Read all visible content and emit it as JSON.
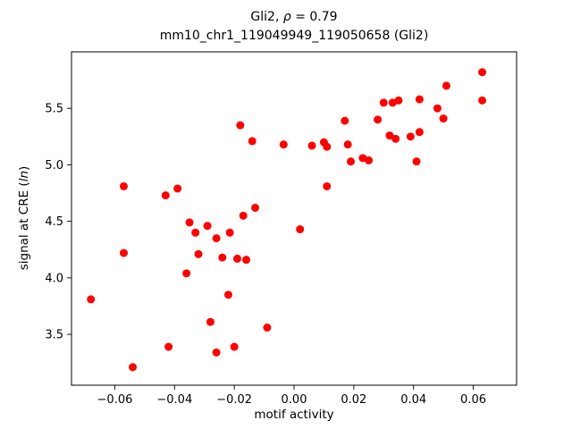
{
  "title": {
    "line1_pre": "Gli2, ",
    "line1_rho": "ρ",
    "line1_post": " = 0.79",
    "line2": "mm10_chr1_119049949_119050658 (Gli2)"
  },
  "axes_labels": {
    "xlabel": "motif activity",
    "ylabel_pre": "signal at CRE (",
    "ylabel_italic": "ln",
    "ylabel_post": ")"
  },
  "chart_data": {
    "type": "scatter",
    "title": "Gli2, ρ = 0.79",
    "subtitle": "mm10_chr1_119049949_119050658 (Gli2)",
    "xlabel": "motif activity",
    "ylabel": "signal at CRE (ln)",
    "legend": "none",
    "grid": false,
    "marker_color": "#ff0000",
    "marker_radius": 4.5,
    "xlim": [
      -0.0745,
      0.0745
    ],
    "ylim": [
      3.05,
      6.0
    ],
    "x_ticks": {
      "values": [
        -0.06,
        -0.04,
        -0.02,
        0.0,
        0.02,
        0.04,
        0.06
      ],
      "labels": [
        "−0.06",
        "−0.04",
        "−0.02",
        "0.00",
        "0.02",
        "0.04",
        "0.06"
      ]
    },
    "y_ticks": {
      "values": [
        3.5,
        4.0,
        4.5,
        5.0,
        5.5
      ],
      "labels": [
        "3.5",
        "4.0",
        "4.5",
        "5.0",
        "5.5"
      ]
    },
    "points": [
      [
        -0.068,
        3.81
      ],
      [
        -0.057,
        4.81
      ],
      [
        -0.057,
        4.22
      ],
      [
        -0.054,
        3.21
      ],
      [
        -0.043,
        4.73
      ],
      [
        -0.042,
        3.39
      ],
      [
        -0.039,
        4.79
      ],
      [
        -0.036,
        4.04
      ],
      [
        -0.035,
        4.49
      ],
      [
        -0.033,
        4.4
      ],
      [
        -0.032,
        4.21
      ],
      [
        -0.029,
        4.46
      ],
      [
        -0.028,
        3.61
      ],
      [
        -0.026,
        3.34
      ],
      [
        -0.026,
        4.35
      ],
      [
        -0.024,
        4.18
      ],
      [
        -0.022,
        3.85
      ],
      [
        -0.0215,
        4.4
      ],
      [
        -0.02,
        3.39
      ],
      [
        -0.019,
        4.17
      ],
      [
        -0.018,
        5.35
      ],
      [
        -0.017,
        4.55
      ],
      [
        -0.016,
        4.16
      ],
      [
        -0.014,
        5.21
      ],
      [
        -0.013,
        4.62
      ],
      [
        -0.009,
        3.56
      ],
      [
        -0.0035,
        5.18
      ],
      [
        0.002,
        4.43
      ],
      [
        0.006,
        5.17
      ],
      [
        0.01,
        5.2
      ],
      [
        0.011,
        4.81
      ],
      [
        0.011,
        5.16
      ],
      [
        0.017,
        5.39
      ],
      [
        0.018,
        5.18
      ],
      [
        0.019,
        5.03
      ],
      [
        0.023,
        5.06
      ],
      [
        0.025,
        5.04
      ],
      [
        0.028,
        5.4
      ],
      [
        0.03,
        5.55
      ],
      [
        0.032,
        5.26
      ],
      [
        0.033,
        5.55
      ],
      [
        0.034,
        5.23
      ],
      [
        0.035,
        5.57
      ],
      [
        0.039,
        5.25
      ],
      [
        0.041,
        5.03
      ],
      [
        0.042,
        5.58
      ],
      [
        0.042,
        5.29
      ],
      [
        0.048,
        5.5
      ],
      [
        0.05,
        5.41
      ],
      [
        0.051,
        5.7
      ],
      [
        0.063,
        5.57
      ],
      [
        0.063,
        5.82
      ]
    ]
  }
}
